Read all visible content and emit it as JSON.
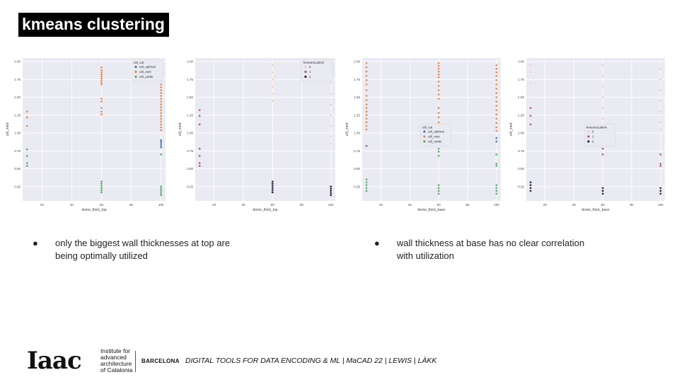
{
  "slide": {
    "title": "kmeans clustering",
    "bullets": [
      {
        "marker": "●",
        "lines": [
          "only the biggest wall thicknesses at top are",
          "being optimally utilized"
        ]
      },
      {
        "marker": "●",
        "lines": [
          "wall thickness at base has no clear correlation",
          "with utilization"
        ]
      }
    ],
    "footer": {
      "logo": "Iaac",
      "institute_lines": [
        "Institute for",
        "advanced",
        "architecture",
        "of Catalonia"
      ],
      "city": "BARCELONA",
      "credits": "DIGITAL TOOLS FOR DATA ENCODING & ML | MaCAD 22 | LEWIS | LÄKK"
    }
  },
  "chart_data": [
    {
      "type": "scatter",
      "xlabel": "dome_thick_top",
      "ylabel": "util_med",
      "xticks": [
        20,
        40,
        60,
        80,
        100
      ],
      "yticks": [
        0.25,
        0.5,
        0.75,
        1.0,
        1.25,
        1.5,
        1.75,
        2.0
      ],
      "xlim": [
        7,
        103
      ],
      "ylim": [
        0.05,
        2.05
      ],
      "grid": true,
      "legend": {
        "title": "util_cat",
        "position": "top-right",
        "entries": [
          "util_optimal",
          "util_over",
          "util_under"
        ]
      },
      "series": [
        {
          "name": "util_optimal",
          "color": "#4c72b0",
          "points": [
            [
              100,
              0.8
            ],
            [
              100,
              0.83
            ],
            [
              100,
              0.86
            ],
            [
              100,
              0.88
            ],
            [
              100,
              0.9
            ]
          ]
        },
        {
          "name": "util_over",
          "color": "#dd8452",
          "points": [
            [
              10,
              1.3
            ],
            [
              10,
              1.22
            ],
            [
              10,
              1.1
            ],
            [
              60,
              1.92
            ],
            [
              60,
              1.88
            ],
            [
              60,
              1.85
            ],
            [
              60,
              1.82
            ],
            [
              60,
              1.79
            ],
            [
              60,
              1.76
            ],
            [
              60,
              1.73
            ],
            [
              60,
              1.7
            ],
            [
              60,
              1.68
            ],
            [
              60,
              1.48
            ],
            [
              60,
              1.44
            ],
            [
              60,
              1.35
            ],
            [
              60,
              1.3
            ],
            [
              60,
              1.26
            ],
            [
              100,
              1.73
            ],
            [
              100,
              1.68
            ],
            [
              100,
              1.64
            ],
            [
              100,
              1.6
            ],
            [
              100,
              1.56
            ],
            [
              100,
              1.52
            ],
            [
              100,
              1.48
            ],
            [
              100,
              1.44
            ],
            [
              100,
              1.4
            ],
            [
              100,
              1.36
            ],
            [
              100,
              1.32
            ],
            [
              100,
              1.28
            ],
            [
              100,
              1.24
            ],
            [
              100,
              1.2
            ],
            [
              100,
              1.16
            ],
            [
              100,
              1.12
            ],
            [
              100,
              1.08
            ],
            [
              100,
              1.04
            ]
          ]
        },
        {
          "name": "util_under",
          "color": "#55a868",
          "points": [
            [
              10,
              0.77
            ],
            [
              10,
              0.68
            ],
            [
              10,
              0.58
            ],
            [
              10,
              0.54
            ],
            [
              60,
              0.32
            ],
            [
              60,
              0.29
            ],
            [
              60,
              0.26
            ],
            [
              60,
              0.23
            ],
            [
              60,
              0.2
            ],
            [
              60,
              0.17
            ],
            [
              100,
              0.7
            ],
            [
              100,
              0.25
            ],
            [
              100,
              0.22
            ],
            [
              100,
              0.19
            ],
            [
              100,
              0.16
            ],
            [
              100,
              0.13
            ]
          ]
        }
      ]
    },
    {
      "type": "scatter",
      "xlabel": "dome_thick_top",
      "ylabel": "util_med",
      "xticks": [
        20,
        40,
        60,
        80,
        100
      ],
      "yticks": [
        0.25,
        0.5,
        0.75,
        1.0,
        1.25,
        1.5,
        1.75,
        2.0
      ],
      "xlim": [
        7,
        103
      ],
      "ylim": [
        0.05,
        2.05
      ],
      "grid": true,
      "legend": {
        "title": "kmeansLabels",
        "position": "top-right",
        "entries": [
          "0",
          "1",
          "2"
        ]
      },
      "series": [
        {
          "name": "0",
          "color": "#f4c9b8",
          "points": [
            [
              60,
              1.95
            ],
            [
              60,
              1.85
            ],
            [
              60,
              1.75
            ],
            [
              60,
              1.65
            ],
            [
              60,
              1.55
            ],
            [
              60,
              1.45
            ],
            [
              100,
              1.7
            ],
            [
              100,
              1.55
            ],
            [
              100,
              1.4
            ],
            [
              100,
              1.25
            ],
            [
              100,
              1.1
            ],
            [
              100,
              0.95
            ],
            [
              100,
              0.85
            ]
          ]
        },
        {
          "name": "1",
          "color": "#a8557a",
          "points": [
            [
              10,
              1.32
            ],
            [
              10,
              1.24
            ],
            [
              10,
              1.12
            ],
            [
              10,
              0.78
            ],
            [
              10,
              0.68
            ],
            [
              10,
              0.58
            ],
            [
              10,
              0.54
            ]
          ]
        },
        {
          "name": "2",
          "color": "#2a1f3d",
          "points": [
            [
              60,
              0.32
            ],
            [
              60,
              0.29
            ],
            [
              60,
              0.26
            ],
            [
              60,
              0.23
            ],
            [
              60,
              0.2
            ],
            [
              60,
              0.17
            ],
            [
              100,
              0.25
            ],
            [
              100,
              0.22
            ],
            [
              100,
              0.19
            ],
            [
              100,
              0.16
            ],
            [
              100,
              0.13
            ]
          ]
        }
      ]
    },
    {
      "type": "scatter",
      "xlabel": "dome_thick_base",
      "ylabel": "util_med",
      "xticks": [
        20,
        40,
        60,
        80,
        100
      ],
      "yticks": [
        0.25,
        0.5,
        0.75,
        1.0,
        1.25,
        1.5,
        1.75,
        2.0
      ],
      "xlim": [
        7,
        103
      ],
      "ylim": [
        0.05,
        2.05
      ],
      "grid": true,
      "legend": {
        "title": "util_cat",
        "position": "center",
        "entries": [
          "util_optimal",
          "util_over",
          "util_under"
        ]
      },
      "series": [
        {
          "name": "util_optimal",
          "color": "#4c72b0",
          "points": [
            [
              10,
              0.82
            ],
            [
              60,
              0.92
            ],
            [
              60,
              0.89
            ],
            [
              100,
              0.93
            ],
            [
              100,
              0.88
            ]
          ]
        },
        {
          "name": "util_over",
          "color": "#dd8452",
          "points": [
            [
              10,
              1.98
            ],
            [
              10,
              1.92
            ],
            [
              10,
              1.86
            ],
            [
              10,
              1.8
            ],
            [
              10,
              1.74
            ],
            [
              10,
              1.68
            ],
            [
              10,
              1.6
            ],
            [
              10,
              1.52
            ],
            [
              10,
              1.46
            ],
            [
              10,
              1.4
            ],
            [
              10,
              1.35
            ],
            [
              10,
              1.3
            ],
            [
              10,
              1.25
            ],
            [
              10,
              1.2
            ],
            [
              10,
              1.15
            ],
            [
              10,
              1.1
            ],
            [
              10,
              1.05
            ],
            [
              60,
              1.98
            ],
            [
              60,
              1.94
            ],
            [
              60,
              1.9
            ],
            [
              60,
              1.86
            ],
            [
              60,
              1.82
            ],
            [
              60,
              1.78
            ],
            [
              60,
              1.72
            ],
            [
              60,
              1.66
            ],
            [
              60,
              1.6
            ],
            [
              60,
              1.54
            ],
            [
              60,
              1.48
            ],
            [
              60,
              1.35
            ],
            [
              60,
              1.28
            ],
            [
              60,
              1.22
            ],
            [
              60,
              1.15
            ],
            [
              60,
              1.08
            ],
            [
              100,
              1.95
            ],
            [
              100,
              1.9
            ],
            [
              100,
              1.85
            ],
            [
              100,
              1.8
            ],
            [
              100,
              1.74
            ],
            [
              100,
              1.68
            ],
            [
              100,
              1.62
            ],
            [
              100,
              1.56
            ],
            [
              100,
              1.5
            ],
            [
              100,
              1.44
            ],
            [
              100,
              1.38
            ],
            [
              100,
              1.32
            ],
            [
              100,
              1.26
            ],
            [
              100,
              1.2
            ],
            [
              100,
              1.14
            ],
            [
              100,
              1.08
            ],
            [
              100,
              1.03
            ]
          ]
        },
        {
          "name": "util_under",
          "color": "#55a868",
          "points": [
            [
              10,
              0.35
            ],
            [
              10,
              0.31
            ],
            [
              10,
              0.27
            ],
            [
              10,
              0.23
            ],
            [
              10,
              0.19
            ],
            [
              60,
              0.78
            ],
            [
              60,
              0.74
            ],
            [
              60,
              0.68
            ],
            [
              60,
              0.27
            ],
            [
              60,
              0.23
            ],
            [
              60,
              0.19
            ],
            [
              60,
              0.15
            ],
            [
              100,
              0.7
            ],
            [
              100,
              0.57
            ],
            [
              100,
              0.54
            ],
            [
              100,
              0.27
            ],
            [
              100,
              0.23
            ],
            [
              100,
              0.19
            ],
            [
              100,
              0.15
            ]
          ]
        }
      ]
    },
    {
      "type": "scatter",
      "xlabel": "dome_thick_base",
      "ylabel": "util_med",
      "xticks": [
        20,
        40,
        60,
        80,
        100
      ],
      "yticks": [
        0.25,
        0.5,
        0.75,
        1.0,
        1.25,
        1.5,
        1.75,
        2.0
      ],
      "xlim": [
        7,
        103
      ],
      "ylim": [
        0.05,
        2.05
      ],
      "grid": true,
      "legend": {
        "title": "kmeansLabels",
        "position": "center",
        "entries": [
          "0",
          "1",
          "2"
        ]
      },
      "series": [
        {
          "name": "0",
          "color": "#f4c9b8",
          "points": [
            [
              10,
              1.95
            ],
            [
              10,
              1.85
            ],
            [
              10,
              1.7
            ],
            [
              60,
              1.95
            ],
            [
              60,
              1.8
            ],
            [
              60,
              1.65
            ],
            [
              60,
              1.5
            ],
            [
              60,
              1.35
            ],
            [
              60,
              1.2
            ],
            [
              100,
              1.9
            ],
            [
              100,
              1.75
            ],
            [
              100,
              1.6
            ],
            [
              100,
              1.45
            ],
            [
              100,
              1.3
            ],
            [
              100,
              1.15
            ],
            [
              100,
              1.05
            ]
          ]
        },
        {
          "name": "1",
          "color": "#a8557a",
          "points": [
            [
              10,
              1.35
            ],
            [
              10,
              1.24
            ],
            [
              10,
              1.12
            ],
            [
              60,
              0.78
            ],
            [
              60,
              0.7
            ],
            [
              100,
              0.7
            ],
            [
              100,
              0.57
            ],
            [
              100,
              0.54
            ]
          ]
        },
        {
          "name": "2",
          "color": "#2a1f3d",
          "points": [
            [
              10,
              0.31
            ],
            [
              10,
              0.27
            ],
            [
              10,
              0.23
            ],
            [
              10,
              0.19
            ],
            [
              60,
              0.23
            ],
            [
              60,
              0.19
            ],
            [
              60,
              0.15
            ],
            [
              100,
              0.23
            ],
            [
              100,
              0.19
            ],
            [
              100,
              0.15
            ]
          ]
        }
      ]
    }
  ]
}
